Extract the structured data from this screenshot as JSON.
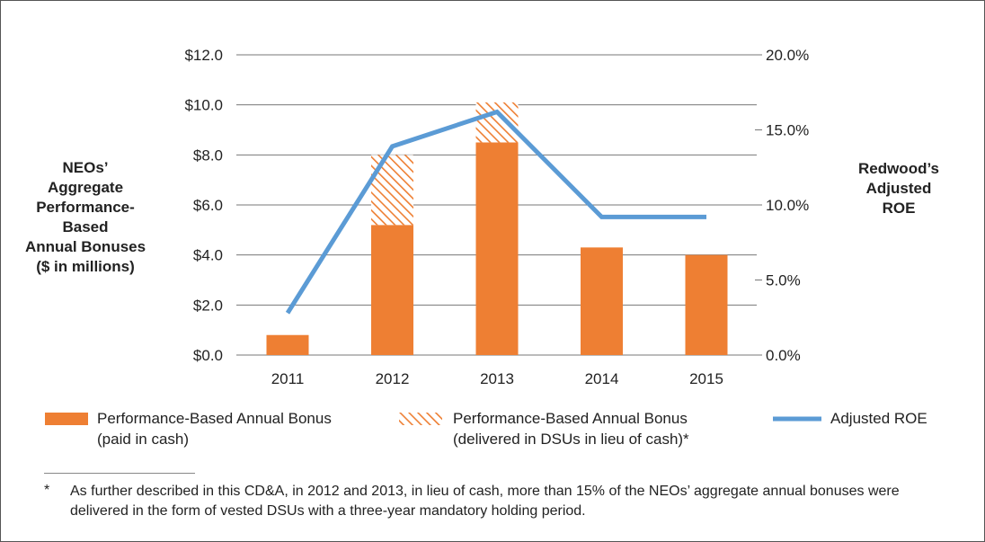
{
  "chart_data": {
    "type": "bar",
    "categories": [
      "2011",
      "2012",
      "2013",
      "2014",
      "2015"
    ],
    "left_axis": {
      "label_lines": [
        "NEOs’",
        "Aggregate",
        "Performance-",
        "Based",
        "Annual Bonuses",
        "($ in millions)"
      ],
      "range": [
        0,
        12
      ],
      "ticks": [
        0,
        2,
        4,
        6,
        8,
        10,
        12
      ],
      "tick_labels": [
        "$0.0",
        "$2.0",
        "$4.0",
        "$6.0",
        "$8.0",
        "$10.0",
        "$12.0"
      ]
    },
    "right_axis": {
      "label_lines": [
        "Redwood’s",
        "Adjusted",
        "ROE"
      ],
      "range": [
        0,
        20
      ],
      "ticks": [
        0,
        5,
        10,
        15,
        20
      ],
      "tick_labels": [
        "0.0%",
        "5.0%",
        "10.0%",
        "15.0%",
        "20.0%"
      ]
    },
    "gridlines": true,
    "series": [
      {
        "name": "Performance-Based Annual Bonus (paid in cash)",
        "kind": "bar",
        "color": "#ee7f33",
        "values": [
          0.8,
          5.2,
          8.5,
          4.3,
          4.0
        ]
      },
      {
        "name": "Performance-Based Annual Bonus (delivered in DSUs in lieu of cash)*",
        "kind": "bar-stacked-hatched",
        "color": "#ee7f33",
        "values": [
          0,
          2.8,
          1.6,
          0,
          0
        ]
      },
      {
        "name": "Adjusted ROE",
        "kind": "line",
        "axis": "right",
        "color": "#5b9bd5",
        "values": [
          2.8,
          13.9,
          16.2,
          9.2,
          9.2
        ]
      }
    ],
    "legend": [
      {
        "line1": "Performance-Based Annual Bonus",
        "line2": "(paid in cash)"
      },
      {
        "line1": "Performance-Based Annual Bonus",
        "line2": "(delivered in DSUs in lieu of cash)*"
      },
      {
        "line1": "Adjusted ROE",
        "line2": ""
      }
    ],
    "legend_position": "bottom"
  },
  "footnote": {
    "mark": "*",
    "text": "As further described in this CD&A, in 2012 and 2013, in lieu of cash, more than 15% of the NEOs’ aggregate annual bonuses were delivered in the form of vested DSUs with a three-year mandatory holding period."
  }
}
